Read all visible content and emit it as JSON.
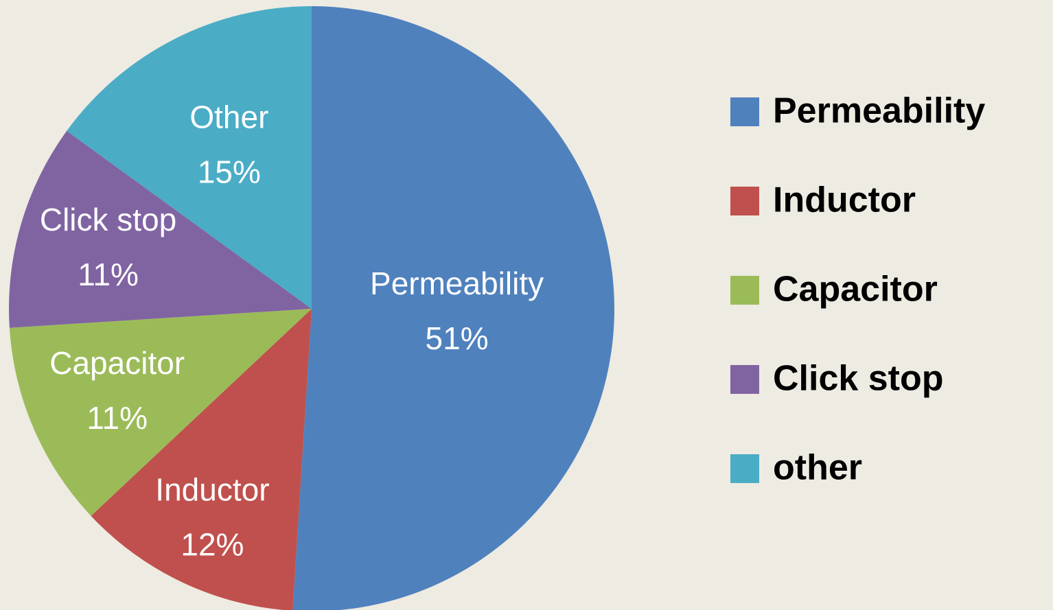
{
  "chart_data": {
    "type": "pie",
    "categories": [
      "Permeability",
      "Inductor",
      "Capacitor",
      "Click stop",
      "other"
    ],
    "slice_labels": [
      "Permeability",
      "Inductor",
      "Capacitor",
      "Click stop",
      "Other"
    ],
    "values": [
      51,
      12,
      11,
      11,
      15
    ],
    "value_labels": [
      "51%",
      "12%",
      "11%",
      "11%",
      "15%"
    ],
    "colors": [
      "#4f81bd",
      "#c0504d",
      "#9bbb59",
      "#8064a2",
      "#4bacc6"
    ],
    "legend": "right"
  }
}
